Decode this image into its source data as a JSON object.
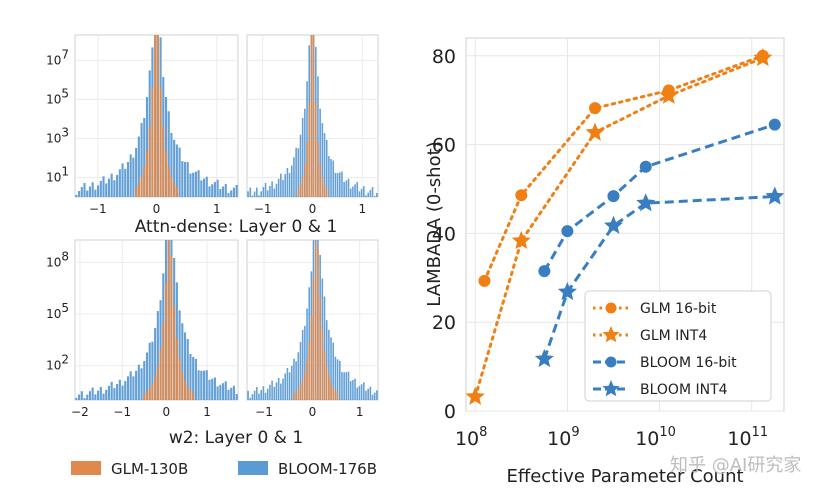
{
  "chart_data": [
    {
      "type": "histogram",
      "panel": "top-left",
      "title": "Attn-dense: Layer 0 & 1",
      "x_ticks": [
        "−1",
        "0",
        "1"
      ],
      "y_ticks": [
        "10",
        "10",
        "10",
        "10"
      ],
      "y_tick_exponents": [
        "1",
        "3",
        "5",
        "7"
      ],
      "y_log_min": 0,
      "y_log_max": 8.3,
      "xlim": [
        -1.3,
        1.3
      ],
      "series": [
        {
          "name": "BLOOM-176B",
          "sigma": 0.13,
          "tail": 0.6,
          "peak_log": 8.1
        },
        {
          "name": "GLM-130B",
          "sigma": 0.08,
          "tail": 0.15,
          "peak_log": 8.0
        }
      ]
    },
    {
      "type": "histogram",
      "panel": "top-right",
      "x_ticks": [
        "−1",
        "0",
        "1"
      ],
      "xlim": [
        -1.6,
        1.6
      ],
      "y_log_min": 0,
      "y_log_max": 8.3,
      "series": [
        {
          "name": "BLOOM-176B",
          "sigma": 0.15,
          "tail": 0.6,
          "peak_log": 8.1
        },
        {
          "name": "GLM-130B",
          "sigma": 0.08,
          "tail": 0.15,
          "peak_log": 8.0
        }
      ]
    },
    {
      "type": "histogram",
      "panel": "bottom-left",
      "title": "w2: Layer 0 & 1",
      "x_ticks": [
        "−2",
        "−1",
        "0",
        "1"
      ],
      "y_ticks": [
        "10",
        "10",
        "10"
      ],
      "y_tick_exponents": [
        "2",
        "5",
        "8"
      ],
      "y_log_min": 0,
      "y_log_max": 9.3,
      "xlim": [
        -2.2,
        1.6
      ],
      "series": [
        {
          "name": "BLOOM-176B",
          "sigma": 0.2,
          "tail": 0.9,
          "peak_log": 8.8
        },
        {
          "name": "GLM-130B",
          "sigma": 0.12,
          "tail": 0.25,
          "peak_log": 8.6
        }
      ]
    },
    {
      "type": "histogram",
      "panel": "bottom-right",
      "x_ticks": [
        "−1",
        "0",
        "1"
      ],
      "xlim": [
        -1.8,
        1.6
      ],
      "y_log_min": 0,
      "y_log_max": 9.3,
      "series": [
        {
          "name": "BLOOM-176B",
          "sigma": 0.2,
          "tail": 0.8,
          "peak_log": 8.8
        },
        {
          "name": "GLM-130B",
          "sigma": 0.12,
          "tail": 0.25,
          "peak_log": 8.6
        }
      ]
    },
    {
      "type": "line",
      "panel": "right",
      "xlabel": "Effective Parameter Count",
      "ylabel": "LAMBADA (0-shot)",
      "x_scale": "log",
      "x_ticks": [
        "10",
        "10",
        "10",
        "10"
      ],
      "x_tick_exponents": [
        "8",
        "9",
        "10",
        "11"
      ],
      "xlim_log": [
        7.9,
        11.35
      ],
      "ylim": [
        0,
        84
      ],
      "y_ticks": [
        "0",
        "20",
        "40",
        "60",
        "80"
      ],
      "grid": true,
      "legend": "bottom-right",
      "series": [
        {
          "name": "GLM 16-bit",
          "color": "#f07f14",
          "style": "dotted",
          "marker": "circle",
          "x_log": [
            8.1,
            8.5,
            9.3,
            10.1,
            11.12
          ],
          "y": [
            29.3,
            48.6,
            68.2,
            72.2,
            80.0
          ]
        },
        {
          "name": "GLM INT4",
          "color": "#f07f14",
          "style": "dotted",
          "marker": "star",
          "x_log": [
            8.0,
            8.5,
            9.3,
            10.1,
            11.12
          ],
          "y": [
            3.2,
            38.3,
            62.7,
            71.0,
            79.5
          ]
        },
        {
          "name": "BLOOM 16-bit",
          "color": "#3a7ec2",
          "style": "dashed",
          "marker": "circle",
          "x_log": [
            8.75,
            9.0,
            9.5,
            9.85,
            11.25
          ],
          "y": [
            31.5,
            40.5,
            48.4,
            55.0,
            64.5
          ]
        },
        {
          "name": "BLOOM INT4",
          "color": "#3a7ec2",
          "style": "dashed",
          "marker": "star",
          "x_log": [
            8.75,
            9.0,
            9.5,
            9.85,
            11.25
          ],
          "y": [
            11.7,
            26.8,
            41.7,
            46.8,
            48.3
          ]
        }
      ]
    }
  ],
  "histogram_legend": [
    {
      "label": "GLM-130B",
      "color": "#e0894d"
    },
    {
      "label": "BLOOM-176B",
      "color": "#5b9bd5"
    }
  ],
  "watermark": "知乎 @AI研究家"
}
